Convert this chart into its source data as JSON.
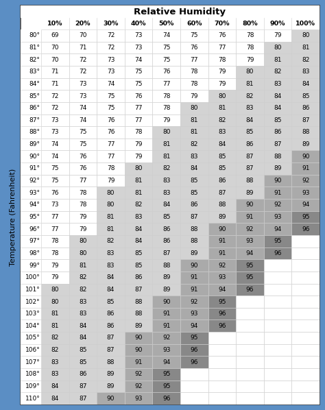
{
  "title": "Relative Humidity",
  "ylabel": "Temperature (Fahrenheit)",
  "col_headers": [
    "10%",
    "20%",
    "30%",
    "40%",
    "50%",
    "60%",
    "70%",
    "80%",
    "90%",
    "100%"
  ],
  "row_labels": [
    "80°",
    "81°",
    "82°",
    "83°",
    "84°",
    "85°",
    "86°",
    "87°",
    "88°",
    "89°",
    "90°",
    "91°",
    "92°",
    "93°",
    "94°",
    "95°",
    "96°",
    "97°",
    "98°",
    "99°",
    "100°",
    "101°",
    "102°",
    "103°",
    "104°",
    "105°",
    "106°",
    "107°",
    "108°",
    "109°",
    "110°"
  ],
  "table_data": [
    [
      69,
      70,
      72,
      73,
      74,
      75,
      76,
      78,
      79,
      80
    ],
    [
      70,
      71,
      72,
      73,
      75,
      76,
      77,
      78,
      80,
      81
    ],
    [
      70,
      72,
      73,
      74,
      75,
      77,
      78,
      79,
      81,
      82
    ],
    [
      71,
      72,
      73,
      75,
      76,
      78,
      79,
      80,
      82,
      83
    ],
    [
      71,
      73,
      74,
      75,
      77,
      78,
      79,
      81,
      83,
      84
    ],
    [
      72,
      73,
      75,
      76,
      78,
      79,
      80,
      82,
      84,
      85
    ],
    [
      72,
      74,
      75,
      77,
      78,
      80,
      81,
      83,
      84,
      86
    ],
    [
      73,
      74,
      76,
      77,
      79,
      81,
      82,
      84,
      85,
      87
    ],
    [
      73,
      75,
      76,
      78,
      80,
      81,
      83,
      85,
      86,
      88
    ],
    [
      74,
      75,
      77,
      79,
      81,
      82,
      84,
      86,
      87,
      89
    ],
    [
      74,
      76,
      77,
      79,
      81,
      83,
      85,
      87,
      88,
      90
    ],
    [
      75,
      76,
      78,
      80,
      82,
      84,
      85,
      87,
      89,
      91
    ],
    [
      75,
      77,
      79,
      81,
      83,
      85,
      86,
      88,
      90,
      92
    ],
    [
      76,
      78,
      80,
      81,
      83,
      85,
      87,
      89,
      91,
      93
    ],
    [
      73,
      78,
      80,
      82,
      84,
      86,
      88,
      90,
      92,
      94
    ],
    [
      77,
      79,
      81,
      83,
      85,
      87,
      89,
      91,
      93,
      95
    ],
    [
      77,
      79,
      81,
      84,
      86,
      88,
      90,
      92,
      94,
      96
    ],
    [
      78,
      80,
      82,
      84,
      86,
      88,
      91,
      93,
      95,
      null
    ],
    [
      78,
      80,
      83,
      85,
      87,
      89,
      91,
      94,
      96,
      null
    ],
    [
      79,
      81,
      83,
      85,
      88,
      90,
      92,
      95,
      null,
      null
    ],
    [
      79,
      82,
      84,
      86,
      89,
      91,
      93,
      95,
      null,
      null
    ],
    [
      80,
      82,
      84,
      87,
      89,
      91,
      94,
      96,
      null,
      null
    ],
    [
      80,
      83,
      85,
      88,
      90,
      92,
      95,
      null,
      null,
      null
    ],
    [
      81,
      83,
      86,
      88,
      91,
      93,
      96,
      null,
      null,
      null
    ],
    [
      81,
      84,
      86,
      89,
      91,
      94,
      96,
      null,
      null,
      null
    ],
    [
      82,
      84,
      87,
      90,
      92,
      95,
      null,
      null,
      null,
      null
    ],
    [
      82,
      85,
      87,
      90,
      93,
      96,
      null,
      null,
      null,
      null
    ],
    [
      83,
      85,
      88,
      91,
      94,
      96,
      null,
      null,
      null,
      null
    ],
    [
      83,
      86,
      89,
      92,
      95,
      null,
      null,
      null,
      null,
      null
    ],
    [
      84,
      87,
      89,
      92,
      95,
      null,
      null,
      null,
      null,
      null
    ],
    [
      84,
      87,
      90,
      93,
      96,
      null,
      null,
      null,
      null,
      null
    ]
  ],
  "shading_thresholds": {
    "light_gray": 80,
    "medium_gray": 90,
    "dark_gray": 95
  },
  "colors": {
    "background": "#5b8ec4",
    "table_bg": "#ffffff",
    "light_gray": "#d3d3d3",
    "medium_gray": "#aaaaaa",
    "dark_gray": "#888888",
    "text": "#000000",
    "grid": "#cccccc",
    "outer_border": "#4a4a4a"
  },
  "font_size_data": 6.5,
  "font_size_header": 6.8,
  "font_size_title": 9.5,
  "font_size_ylabel": 8.0
}
